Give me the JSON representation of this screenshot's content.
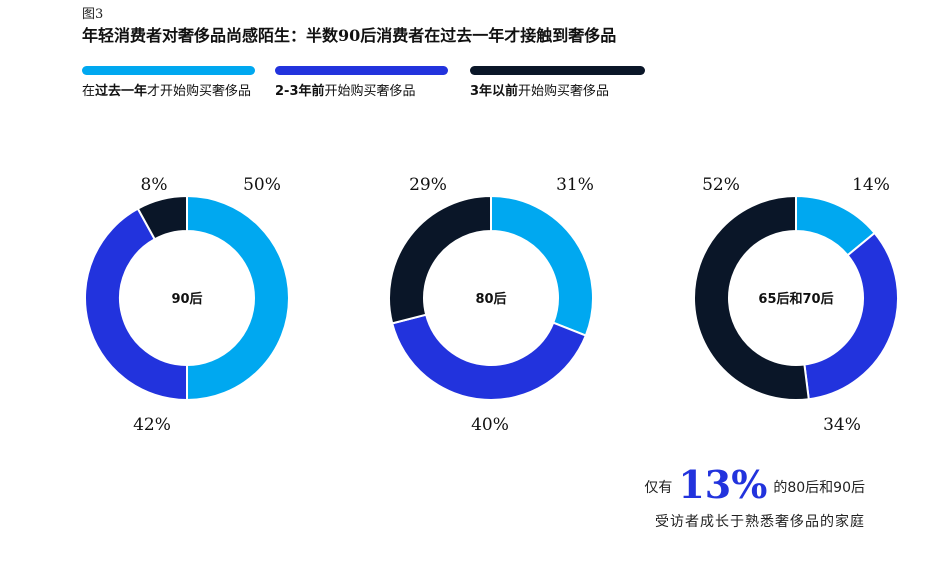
{
  "figure_label": "图3",
  "title": "年轻消费者对奢侈品尚感陌生：半数90后消费者在过去一年才接触到奢侈品",
  "legend": [
    {
      "prefix": "在",
      "bold": "过去一年",
      "suffix": "才开始购买奢侈品",
      "color": "#00a8f0"
    },
    {
      "prefix": "",
      "bold": "2-3年前",
      "suffix": "开始购买奢侈品",
      "color": "#2233dd"
    },
    {
      "prefix": "",
      "bold": "3年以前",
      "suffix": "开始购买奢侈品",
      "color": "#0a1628"
    }
  ],
  "chart_data": {
    "type": "pie",
    "variant": "donut",
    "series_names": [
      "在过去一年才开始购买奢侈品",
      "2-3年前开始购买奢侈品",
      "3年以前开始购买奢侈品"
    ],
    "colors": [
      "#00a8f0",
      "#2233dd",
      "#0a1628"
    ],
    "charts": [
      {
        "label": "90后",
        "values": [
          50,
          42,
          8
        ],
        "value_labels": [
          "50%",
          "42%",
          "8%"
        ]
      },
      {
        "label": "80后",
        "values": [
          31,
          40,
          29
        ],
        "value_labels": [
          "31%",
          "40%",
          "29%"
        ]
      },
      {
        "label": "65后和70后",
        "values": [
          14,
          34,
          52
        ],
        "value_labels": [
          "14%",
          "34%",
          "52%"
        ]
      }
    ]
  },
  "callout": {
    "prefix": "仅有",
    "value": "13%",
    "suffix": "的80后和90后",
    "line2": "受访者成长于熟悉奢侈品的家庭"
  }
}
